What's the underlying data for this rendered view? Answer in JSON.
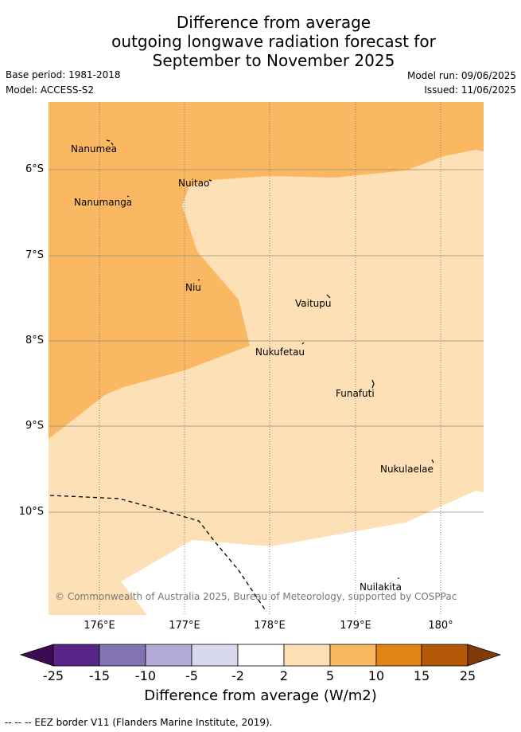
{
  "title_lines": [
    "Difference from average",
    "outgoing longwave radiation forecast for",
    "September to November 2025"
  ],
  "meta": {
    "base_period": "Base period: 1981-2018",
    "model": "Model: ACCESS-S2",
    "model_run": "Model run: 09/06/2025",
    "issued": "Issued: 11/06/2025"
  },
  "map": {
    "lat_labels": [
      "6°S",
      "7°S",
      "8°S",
      "9°S",
      "10°S"
    ],
    "lon_labels": [
      "176°E",
      "177°E",
      "178°E",
      "179°E",
      "180°"
    ],
    "islands": [
      {
        "name": "Nanumea"
      },
      {
        "name": "Nuitao"
      },
      {
        "name": "Nanumanga"
      },
      {
        "name": "Niu"
      },
      {
        "name": "Vaitupu"
      },
      {
        "name": "Nukufetau"
      },
      {
        "name": "Funafuti"
      },
      {
        "name": "Nukulaelae"
      },
      {
        "name": "Nuilakita"
      }
    ],
    "copyright": "© Commonwealth of Australia 2025, Bureau of Meteorology, supported by COSPPac",
    "fill_colors": {
      "class_5_10": "#fbb862",
      "class_2_5": "#fde0b6",
      "no_data": "#ffffff"
    }
  },
  "colorbar": {
    "ticks": [
      "-25",
      "-15",
      "-10",
      "-5",
      "-2",
      "2",
      "5",
      "10",
      "15",
      "25"
    ],
    "colors": [
      "#3f0a54",
      "#5a2589",
      "#8274b3",
      "#b2aad4",
      "#d8d9ec",
      "#ffffff",
      "#fde0b6",
      "#fbb862",
      "#e08416",
      "#b35806",
      "#7f3b08"
    ],
    "title": "Difference from average (W/m2)"
  },
  "legend_note": "--  --  -- EEZ border V11 (Flanders Marine Institute, 2019)."
}
